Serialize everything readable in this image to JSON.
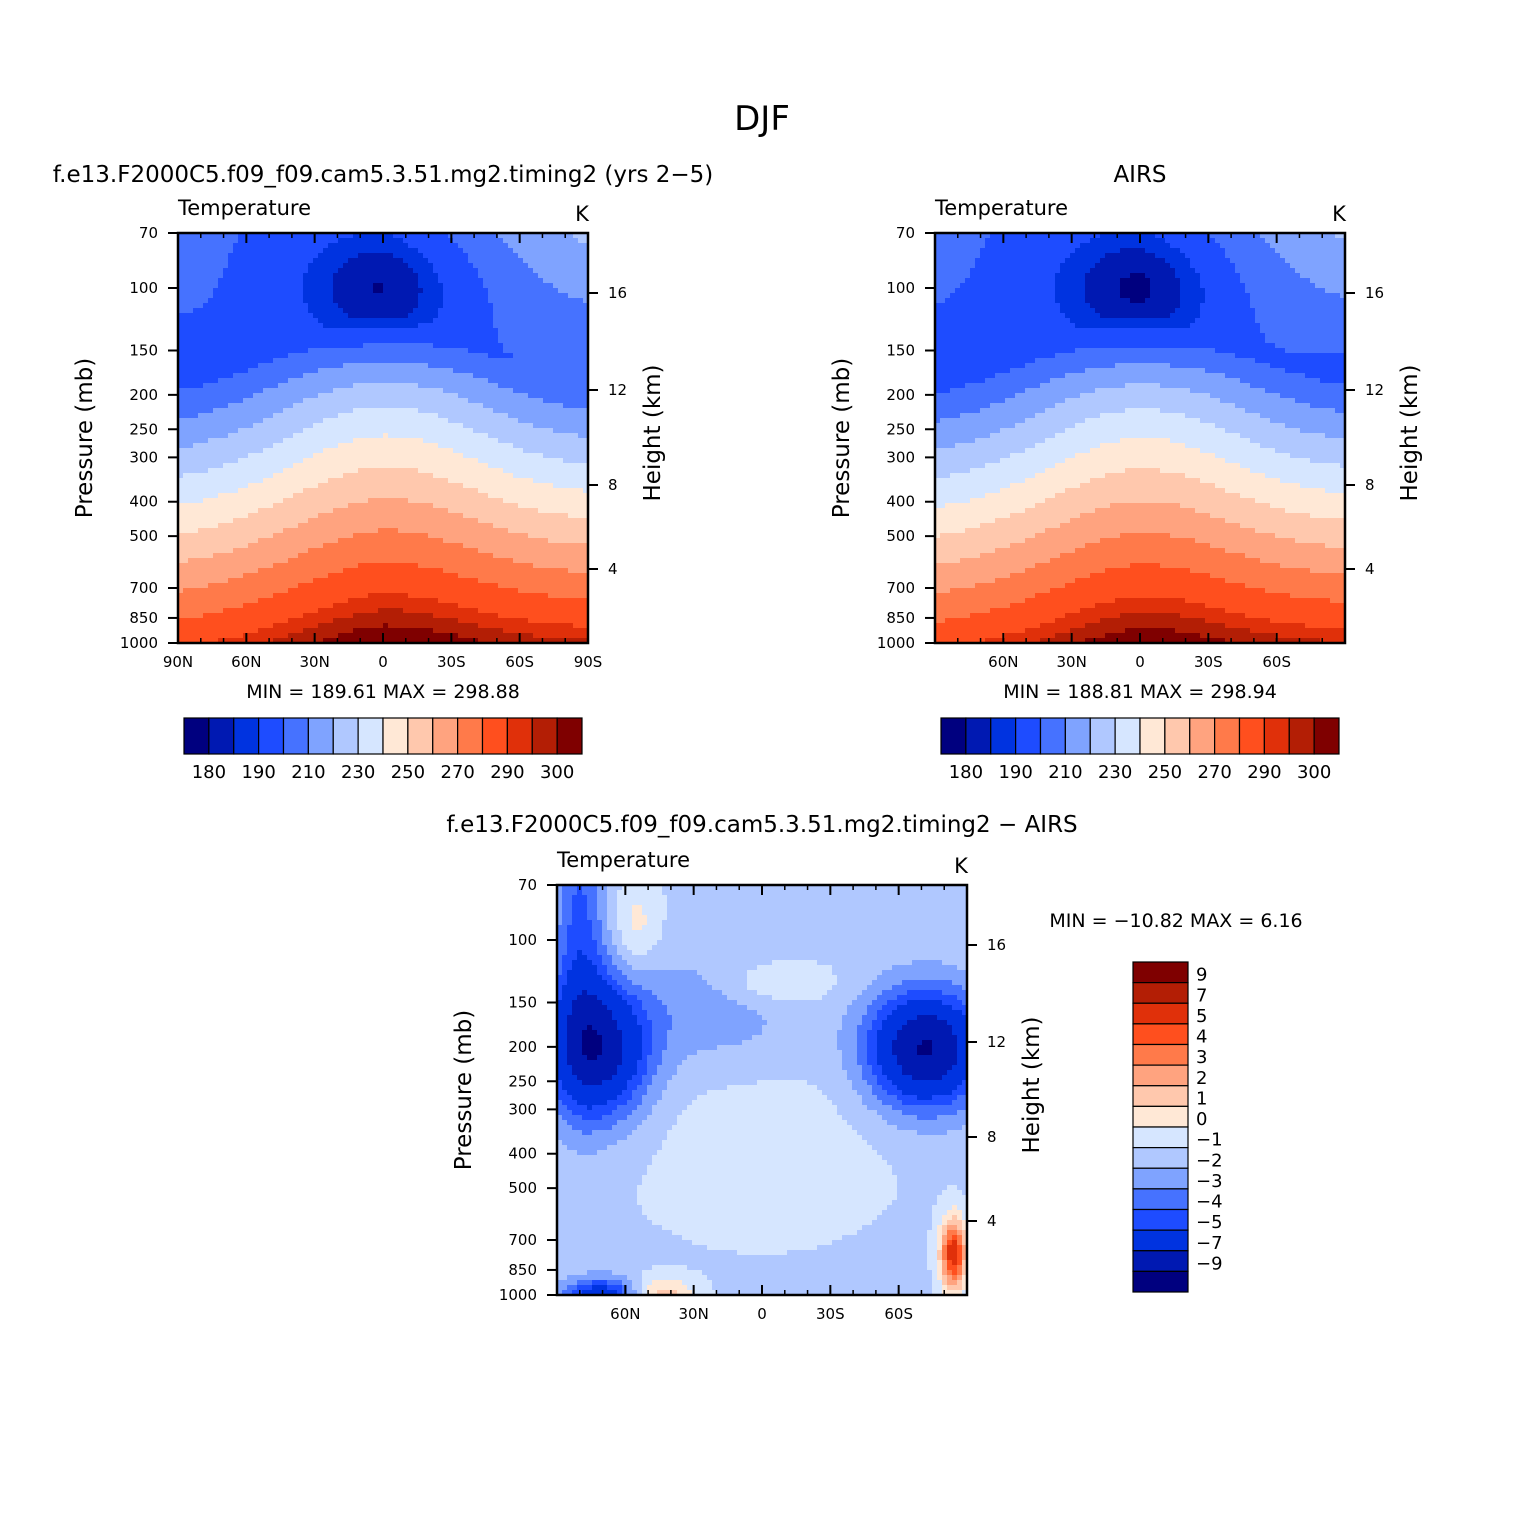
{
  "figure": {
    "title": "DJF"
  },
  "palette": {
    "temperature": [
      "#00007f",
      "#0019b2",
      "#0033e0",
      "#1e4cff",
      "#4672ff",
      "#7fa3ff",
      "#b0c8ff",
      "#d6e6ff",
      "#ffe8d6",
      "#ffc8ad",
      "#ffa37f",
      "#ff7a4a",
      "#ff4f1e",
      "#e0300a",
      "#b31e05",
      "#7f0000"
    ],
    "difference": [
      "#00007f",
      "#0019b2",
      "#0033e0",
      "#1e4cff",
      "#4672ff",
      "#7fa3ff",
      "#b0c8ff",
      "#d6e6ff",
      "#ffe8d6",
      "#ffc8ad",
      "#ffa37f",
      "#ff7a4a",
      "#ff4f1e",
      "#e0300a",
      "#b31e05",
      "#7f0000"
    ]
  },
  "chart_data": [
    {
      "type": "heatmap",
      "title": "f.e13.F2000C5.f09_f09.cam5.3.51.mg2.timing2 (yrs 2−5)",
      "field": "Temperature",
      "units": "K",
      "xlabel": "",
      "ylabel": "Pressure (mb)",
      "ylabel_right": "Height (km)",
      "x_ticks": [
        "90N",
        "60N",
        "30N",
        "0",
        "30S",
        "60S",
        "90S"
      ],
      "x_tick_values": [
        90,
        60,
        30,
        0,
        -30,
        -60,
        -90
      ],
      "xlim": [
        90,
        -90
      ],
      "y_ticks": [
        "70",
        "100",
        "150",
        "200",
        "250",
        "300",
        "400",
        "500",
        "700",
        "850",
        "1000"
      ],
      "y_tick_values": [
        70,
        100,
        150,
        200,
        250,
        300,
        400,
        500,
        700,
        850,
        1000
      ],
      "ylim": [
        1000,
        70
      ],
      "y_scale": "log",
      "y_right_ticks": [
        "4",
        "8",
        "12",
        "16"
      ],
      "y_right_values": [
        4,
        8,
        12,
        16
      ],
      "min_label": "MIN",
      "max_label": "MAX",
      "min": "189.61",
      "max": "298.88",
      "colorbar_levels": [
        180,
        185,
        190,
        200,
        210,
        220,
        230,
        240,
        250,
        260,
        270,
        280,
        290,
        295,
        300
      ],
      "colorbar_labels": [
        "180",
        "190",
        "210",
        "230",
        "250",
        "270",
        "290",
        "300"
      ],
      "colorbar_orientation": "horizontal"
    },
    {
      "type": "heatmap",
      "title": "AIRS",
      "field": "Temperature",
      "units": "K",
      "xlabel": "",
      "ylabel": "Pressure (mb)",
      "ylabel_right": "Height (km)",
      "x_ticks": [
        "60N",
        "30N",
        "0",
        "30S",
        "60S"
      ],
      "x_tick_values": [
        60,
        30,
        0,
        -30,
        -60
      ],
      "xlim": [
        90,
        -90
      ],
      "y_ticks": [
        "70",
        "100",
        "150",
        "200",
        "250",
        "300",
        "400",
        "500",
        "700",
        "850",
        "1000"
      ],
      "y_tick_values": [
        70,
        100,
        150,
        200,
        250,
        300,
        400,
        500,
        700,
        850,
        1000
      ],
      "ylim": [
        1000,
        70
      ],
      "y_scale": "log",
      "y_right_ticks": [
        "4",
        "8",
        "12",
        "16"
      ],
      "y_right_values": [
        4,
        8,
        12,
        16
      ],
      "min_label": "MIN",
      "max_label": "MAX",
      "min": "188.81",
      "max": "298.94",
      "colorbar_levels": [
        180,
        185,
        190,
        200,
        210,
        220,
        230,
        240,
        250,
        260,
        270,
        280,
        290,
        295,
        300
      ],
      "colorbar_labels": [
        "180",
        "190",
        "210",
        "230",
        "250",
        "270",
        "290",
        "300"
      ],
      "colorbar_orientation": "horizontal"
    },
    {
      "type": "heatmap",
      "title": "f.e13.F2000C5.f09_f09.cam5.3.51.mg2.timing2 − AIRS",
      "field": "Temperature",
      "units": "K",
      "xlabel": "",
      "ylabel": "Pressure (mb)",
      "ylabel_right": "Height (km)",
      "x_ticks": [
        "60N",
        "30N",
        "0",
        "30S",
        "60S"
      ],
      "x_tick_values": [
        60,
        30,
        0,
        -30,
        -60
      ],
      "xlim": [
        90,
        -90
      ],
      "y_ticks": [
        "70",
        "100",
        "150",
        "200",
        "250",
        "300",
        "400",
        "500",
        "700",
        "850",
        "1000"
      ],
      "y_tick_values": [
        70,
        100,
        150,
        200,
        250,
        300,
        400,
        500,
        700,
        850,
        1000
      ],
      "ylim": [
        1000,
        70
      ],
      "y_scale": "log",
      "y_right_ticks": [
        "4",
        "8",
        "12",
        "16"
      ],
      "y_right_values": [
        4,
        8,
        12,
        16
      ],
      "min_label": "MIN",
      "max_label": "MAX",
      "min": "−10.82",
      "max": "6.16",
      "colorbar_levels": [
        9,
        7,
        5,
        4,
        3,
        2,
        1,
        0,
        -1,
        -2,
        -3,
        -4,
        -5,
        -7,
        -9
      ],
      "colorbar_labels": [
        "9",
        "7",
        "5",
        "4",
        "3",
        "2",
        "1",
        "0",
        "−1",
        "−2",
        "−3",
        "−4",
        "−5",
        "−7",
        "−9"
      ],
      "colorbar_orientation": "vertical"
    }
  ]
}
